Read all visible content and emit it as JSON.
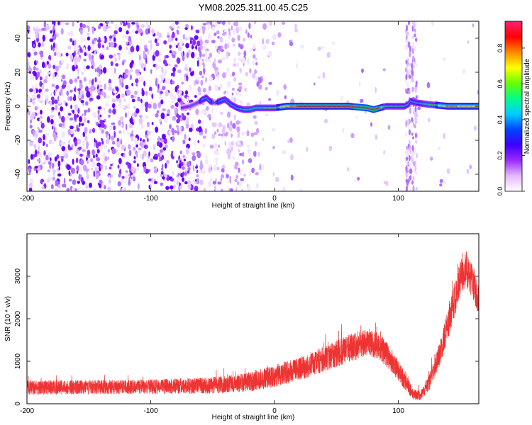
{
  "title": "YM08.2025.311.00.45.C25",
  "chart_data": [
    {
      "type": "heatmap",
      "title": "YM08.2025.311.00.45.C25",
      "xlabel": "Height of straight line (km)",
      "ylabel": "Frequency (Hz)",
      "xlim": [
        -200,
        165
      ],
      "ylim": [
        -50,
        50
      ],
      "x_ticks": [
        -200,
        -100,
        0,
        100
      ],
      "x_tick_labels": [
        "-200",
        "-100",
        "0",
        "100"
      ],
      "y_ticks": [
        -40,
        -20,
        0,
        20,
        40
      ],
      "y_tick_labels": [
        "-40",
        "-20",
        "0",
        "20",
        "40"
      ],
      "colorbar": {
        "label": "Normalized spectral amplitude",
        "range": [
          0,
          0.95
        ],
        "ticks": [
          0.0,
          0.2,
          0.4,
          0.6,
          0.8
        ],
        "tick_labels": [
          "0.0",
          "0.2",
          "0.4",
          "0.6",
          "0.8"
        ],
        "colors": [
          "#ffffff",
          "#e6b8ff",
          "#9a2cff",
          "#3a00ff",
          "#0044ff",
          "#00ccff",
          "#00ff88",
          "#66ff00",
          "#ffff00",
          "#ff8800",
          "#ff0000",
          "#ff2277"
        ]
      },
      "ridge": {
        "description_free": true,
        "x": [
          -75,
          -68,
          -62,
          -58,
          -55,
          -52,
          -48,
          -44,
          -40,
          -35,
          -30,
          -25,
          -20,
          -15,
          -10,
          -5,
          0,
          10,
          20,
          40,
          60,
          75,
          80,
          85,
          90,
          105,
          108,
          110,
          115,
          125,
          140,
          165
        ],
        "y": [
          -1,
          0,
          2,
          4,
          5,
          3,
          2,
          3,
          4,
          1,
          -1,
          -2,
          -2,
          -1,
          -1,
          -1,
          -1,
          0,
          0,
          0,
          0,
          -1,
          -2,
          -1,
          0,
          0,
          1,
          3,
          2,
          1,
          0,
          0
        ],
        "amplitude": [
          0.25,
          0.3,
          0.35,
          0.4,
          0.45,
          0.4,
          0.35,
          0.4,
          0.45,
          0.4,
          0.45,
          0.5,
          0.55,
          0.55,
          0.55,
          0.6,
          0.6,
          0.7,
          0.85,
          0.85,
          0.85,
          0.9,
          0.9,
          0.85,
          0.5,
          0.5,
          0.5,
          0.45,
          0.45,
          0.55,
          0.75,
          0.7
        ]
      },
      "vertical_bands_x": [
        108,
        113
      ]
    },
    {
      "type": "line",
      "xlabel": "Height of straight line (km)",
      "ylabel": "SNR (10 * v/v)",
      "xlim": [
        -200,
        165
      ],
      "ylim": [
        0,
        4000
      ],
      "x_ticks": [
        -200,
        -100,
        0,
        100
      ],
      "x_tick_labels": [
        "-200",
        "-100",
        "0",
        "100"
      ],
      "y_ticks": [
        0,
        1000,
        2000,
        3000
      ],
      "y_tick_labels": [
        "0",
        "1000",
        "2000",
        "3000"
      ],
      "color": "#ee3333",
      "envelope": {
        "x": [
          -200,
          -150,
          -100,
          -50,
          -20,
          0,
          20,
          40,
          60,
          75,
          85,
          95,
          105,
          112,
          118,
          125,
          135,
          145,
          150,
          155,
          160,
          165
        ],
        "mean": [
          380,
          390,
          400,
          430,
          520,
          650,
          820,
          1050,
          1300,
          1450,
          1350,
          1000,
          550,
          220,
          200,
          500,
          1300,
          2400,
          3000,
          3150,
          2900,
          2400
        ],
        "spread": [
          170,
          170,
          170,
          200,
          230,
          260,
          280,
          300,
          330,
          340,
          320,
          280,
          220,
          120,
          120,
          200,
          300,
          400,
          420,
          440,
          400,
          350
        ]
      }
    }
  ]
}
